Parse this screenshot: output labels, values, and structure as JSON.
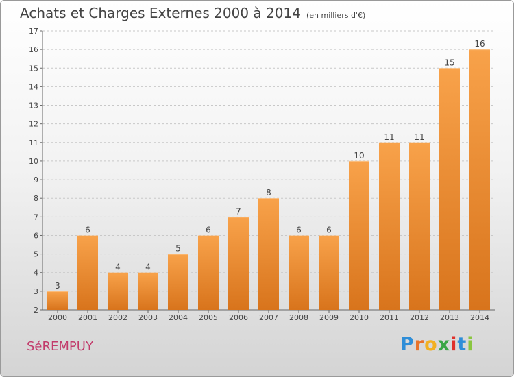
{
  "header": {
    "title": "Achats et Charges Externes 2000 à 2014",
    "subtitle": "(en milliers d'€)"
  },
  "footer": {
    "commune": "SéREMPUY",
    "logo_letters": [
      "P",
      "r",
      "o",
      "x",
      "i",
      "t",
      "i"
    ]
  },
  "colors": {
    "bar_top": "#f8a24a",
    "bar_bottom": "#d8741c",
    "commune": "#c23b6b",
    "logo": [
      "#2f8ed8",
      "#e8732a",
      "#f2b020",
      "#3aa645",
      "#e0302a",
      "#2f8ed8",
      "#8ac640"
    ]
  },
  "chart_data": {
    "type": "bar",
    "title": "Achats et Charges Externes 2000 à 2014",
    "subtitle": "(en milliers d'€)",
    "xlabel": "",
    "ylabel": "",
    "categories": [
      "2000",
      "2001",
      "2002",
      "2003",
      "2004",
      "2005",
      "2006",
      "2007",
      "2008",
      "2009",
      "2010",
      "2011",
      "2012",
      "2013",
      "2014"
    ],
    "values": [
      3,
      6,
      4,
      4,
      5,
      6,
      7,
      8,
      6,
      6,
      10,
      11,
      11,
      15,
      16
    ],
    "ylim": [
      2,
      17
    ],
    "yticks": [
      2,
      3,
      4,
      5,
      6,
      7,
      8,
      9,
      10,
      11,
      12,
      13,
      14,
      15,
      16,
      17
    ],
    "grid": "horizontal dashed",
    "legend": "none"
  }
}
